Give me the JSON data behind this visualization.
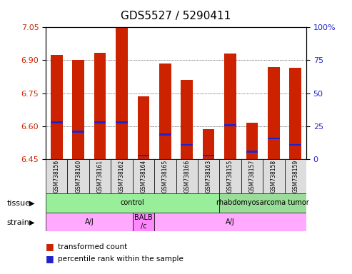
{
  "title": "GDS5527 / 5290411",
  "samples": [
    "GSM738156",
    "GSM738160",
    "GSM738161",
    "GSM738162",
    "GSM738164",
    "GSM738165",
    "GSM738166",
    "GSM738163",
    "GSM738155",
    "GSM738157",
    "GSM738158",
    "GSM738159"
  ],
  "bar_bottom": 6.45,
  "transformed_counts": [
    6.925,
    6.9,
    6.935,
    7.05,
    6.735,
    6.885,
    6.81,
    6.585,
    6.93,
    6.615,
    6.87,
    6.865
  ],
  "percentile_ranks": [
    27,
    20,
    27,
    27,
    2,
    18,
    10,
    2,
    25,
    5,
    15,
    10
  ],
  "ylim_left": [
    6.45,
    7.05
  ],
  "ylim_right": [
    0,
    100
  ],
  "left_ticks": [
    6.45,
    6.6,
    6.75,
    6.9,
    7.05
  ],
  "right_ticks": [
    0,
    25,
    50,
    75,
    100
  ],
  "right_tick_labels": [
    "0",
    "25",
    "50",
    "75",
    "100%"
  ],
  "grid_lines": [
    6.6,
    6.75,
    6.9
  ],
  "bar_color": "#cc2200",
  "percentile_color": "#2222cc",
  "tissue_control_color": "#99ee99",
  "tissue_tumor_color": "#99dd99",
  "strain_aj_color": "#ffaaff",
  "strain_balb_color": "#ff88ff",
  "tissue_groups": [
    {
      "label": "control",
      "start": 0,
      "end": 8
    },
    {
      "label": "rhabdomyosarcoma tumor",
      "start": 8,
      "end": 12
    }
  ],
  "strain_groups": [
    {
      "label": "A/J",
      "start": 0,
      "end": 4
    },
    {
      "label": "BALB\n/c",
      "start": 4,
      "end": 5
    },
    {
      "label": "A/J",
      "start": 5,
      "end": 12
    }
  ],
  "legend_items": [
    {
      "color": "#cc2200",
      "label": "transformed count"
    },
    {
      "color": "#2222cc",
      "label": "percentile rank within the sample"
    }
  ],
  "left_axis_color": "#cc2200",
  "right_axis_color": "#2222cc",
  "grid_color": "black",
  "background_color": "white",
  "sample_box_color": "#dddddd"
}
